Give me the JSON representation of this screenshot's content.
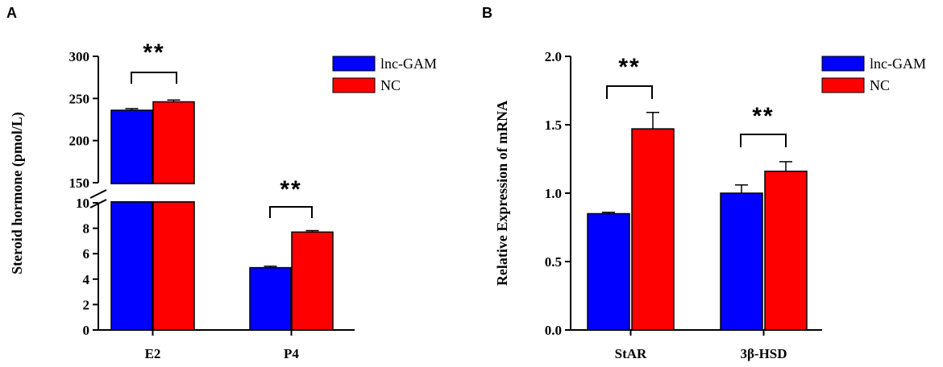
{
  "chart_data": [
    {
      "panel": "A",
      "type": "bar",
      "ylabel": "Steroid hormone (pmol/L)",
      "xlabel": "",
      "categories": [
        "E2",
        "P4"
      ],
      "series": [
        {
          "name": "lnc-GAM",
          "color": "#0000ff",
          "values": [
            236,
            4.9
          ],
          "errors": [
            1.0,
            0.05
          ]
        },
        {
          "name": "NC",
          "color": "#ff0000",
          "values": [
            246,
            7.7
          ],
          "errors": [
            1.2,
            0.05
          ]
        }
      ],
      "ylim": [
        0,
        300
      ],
      "axis_break": [
        10,
        150
      ],
      "yticks_lower": [
        "0",
        "2",
        "4",
        "6",
        "8",
        "10"
      ],
      "yticks_upper": [
        "150",
        "200",
        "250",
        "300"
      ],
      "significance": [
        "**",
        "**"
      ],
      "legend": "top-right"
    },
    {
      "panel": "B",
      "type": "bar",
      "ylabel": "Relative Expression of mRNA",
      "xlabel": "",
      "categories": [
        "StAR",
        "3β-HSD"
      ],
      "series": [
        {
          "name": "lnc-GAM",
          "color": "#0000ff",
          "values": [
            0.85,
            1.0
          ],
          "errors": [
            0.01,
            0.06
          ]
        },
        {
          "name": "NC",
          "color": "#ff0000",
          "values": [
            1.47,
            1.16
          ],
          "errors": [
            0.12,
            0.07
          ]
        }
      ],
      "ylim": [
        0,
        2.0
      ],
      "yticks": [
        "0.0",
        "0.5",
        "1.0",
        "1.5",
        "2.0"
      ],
      "significance": [
        "**",
        "**"
      ],
      "legend": "top-right"
    }
  ]
}
